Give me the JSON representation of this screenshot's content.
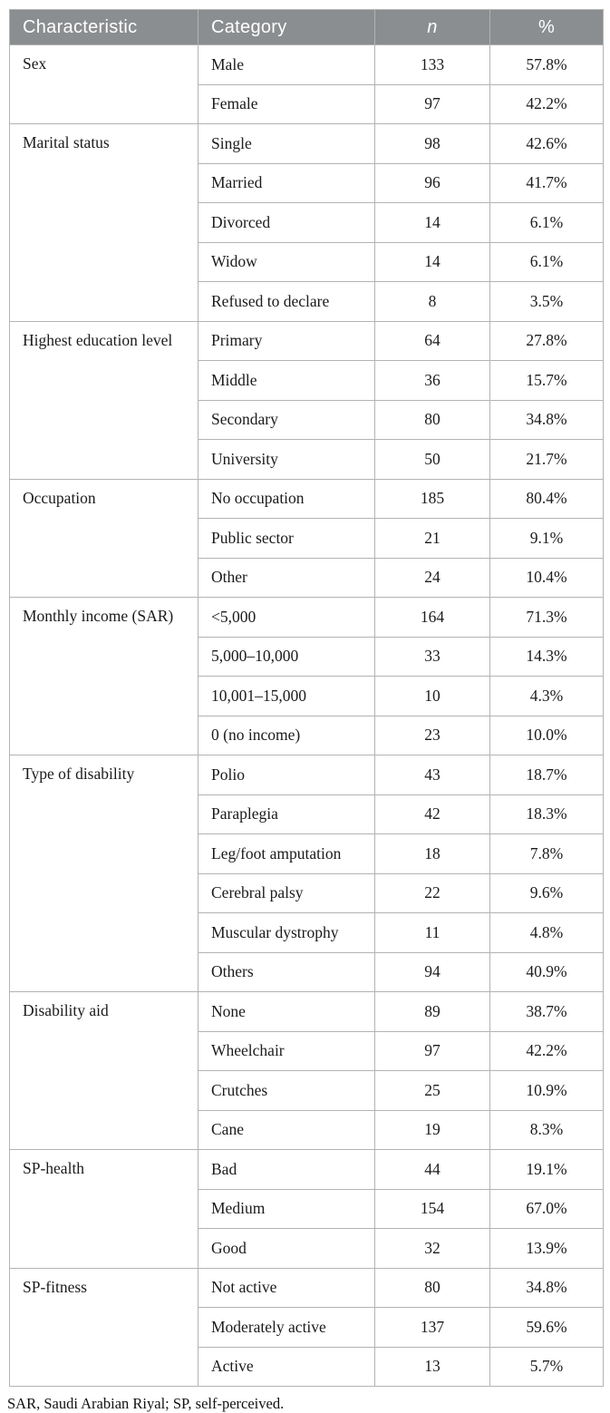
{
  "table": {
    "columns": [
      "Characteristic",
      "Category",
      "n",
      "%"
    ],
    "groups": [
      {
        "characteristic": "Sex",
        "rows": [
          [
            "Male",
            "133",
            "57.8%"
          ],
          [
            "Female",
            "97",
            "42.2%"
          ]
        ]
      },
      {
        "characteristic": "Marital status",
        "rows": [
          [
            "Single",
            "98",
            "42.6%"
          ],
          [
            "Married",
            "96",
            "41.7%"
          ],
          [
            "Divorced",
            "14",
            "6.1%"
          ],
          [
            "Widow",
            "14",
            "6.1%"
          ],
          [
            "Refused to declare",
            "8",
            "3.5%"
          ]
        ]
      },
      {
        "characteristic": "Highest education level",
        "rows": [
          [
            "Primary",
            "64",
            "27.8%"
          ],
          [
            "Middle",
            "36",
            "15.7%"
          ],
          [
            "Secondary",
            "80",
            "34.8%"
          ],
          [
            "University",
            "50",
            "21.7%"
          ]
        ]
      },
      {
        "characteristic": "Occupation",
        "rows": [
          [
            "No occupation",
            "185",
            "80.4%"
          ],
          [
            "Public sector",
            "21",
            "9.1%"
          ],
          [
            "Other",
            "24",
            "10.4%"
          ]
        ]
      },
      {
        "characteristic": "Monthly income (SAR)",
        "rows": [
          [
            "<5,000",
            "164",
            "71.3%"
          ],
          [
            "5,000–10,000",
            "33",
            "14.3%"
          ],
          [
            "10,001–15,000",
            "10",
            "4.3%"
          ],
          [
            "0 (no income)",
            "23",
            "10.0%"
          ]
        ]
      },
      {
        "characteristic": "Type of disability",
        "rows": [
          [
            "Polio",
            "43",
            "18.7%"
          ],
          [
            "Paraplegia",
            "42",
            "18.3%"
          ],
          [
            "Leg/foot amputation",
            "18",
            "7.8%"
          ],
          [
            "Cerebral palsy",
            "22",
            "9.6%"
          ],
          [
            "Muscular dystrophy",
            "11",
            "4.8%"
          ],
          [
            "Others",
            "94",
            "40.9%"
          ]
        ]
      },
      {
        "characteristic": "Disability aid",
        "rows": [
          [
            "None",
            "89",
            "38.7%"
          ],
          [
            "Wheelchair",
            "97",
            "42.2%"
          ],
          [
            "Crutches",
            "25",
            "10.9%"
          ],
          [
            "Cane",
            "19",
            "8.3%"
          ]
        ]
      },
      {
        "characteristic": "SP-health",
        "rows": [
          [
            "Bad",
            "44",
            "19.1%"
          ],
          [
            "Medium",
            "154",
            "67.0%"
          ],
          [
            "Good",
            "32",
            "13.9%"
          ]
        ]
      },
      {
        "characteristic": "SP-fitness",
        "rows": [
          [
            "Not active",
            "80",
            "34.8%"
          ],
          [
            "Moderately active",
            "137",
            "59.6%"
          ],
          [
            "Active",
            "13",
            "5.7%"
          ]
        ]
      }
    ],
    "footnote": "SAR, Saudi Arabian Riyal; SP, self-perceived.",
    "colors": {
      "header_bg": "#8b8e90",
      "header_text": "#ffffff",
      "border": "#b2b4b1",
      "body_text": "#1b1b1b"
    }
  }
}
